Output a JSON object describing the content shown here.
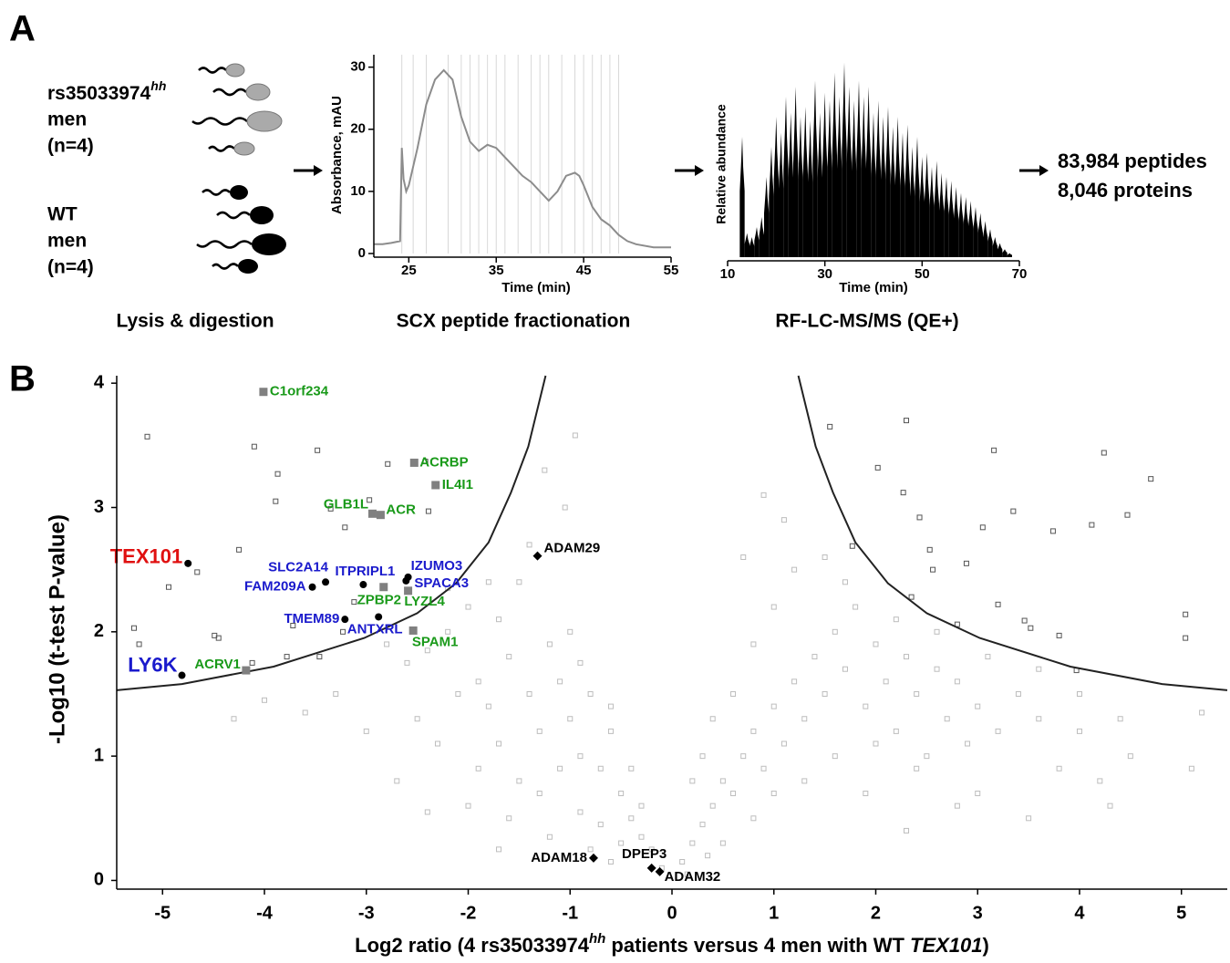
{
  "panel_labels": [
    "A",
    "B"
  ],
  "groups": [
    {
      "name": "rs35033974",
      "superscript": "hh",
      "lines": [
        "men",
        "(n=4)"
      ]
    },
    {
      "name": "WT",
      "lines": [
        "men",
        "(n=4)"
      ]
    }
  ],
  "steps": [
    "Lysis & digestion",
    "SCX peptide fractionation",
    "RF-LC-MS/MS (QE+)"
  ],
  "results": [
    "83,984 peptides",
    "8,046 proteins"
  ],
  "chart_data": [
    {
      "type": "line",
      "x_label": "Time (min)",
      "y_label": "Absorbance, mAU",
      "xlim": [
        21,
        55
      ],
      "ylim": [
        0,
        32
      ],
      "xticks": [
        25,
        35,
        45,
        55
      ],
      "yticks": [
        0,
        10,
        20,
        30
      ],
      "color": "#8c8c8c",
      "x": [
        21,
        22,
        23,
        24,
        24.2,
        24.4,
        24.7,
        25,
        26,
        27,
        28,
        29,
        30,
        31,
        32,
        33,
        34,
        35,
        36,
        37,
        38,
        39,
        40,
        41,
        42,
        43,
        44,
        44.5,
        45,
        46,
        47,
        48,
        49,
        50,
        51,
        53,
        55
      ],
      "values": [
        1.5,
        1.5,
        1.7,
        2,
        17,
        12,
        10,
        11,
        17,
        24,
        28,
        29.5,
        28,
        22,
        18,
        16.5,
        17.5,
        17,
        15.5,
        14,
        12.5,
        11.5,
        10,
        8.5,
        10,
        12.5,
        13,
        12.5,
        11,
        7.5,
        5.5,
        4.5,
        3,
        2,
        1.5,
        1,
        1
      ],
      "fractions": [
        24.2,
        25.5,
        27,
        29.5,
        31,
        32,
        33,
        34,
        35,
        36,
        37.5,
        39,
        40,
        41,
        42.5,
        44,
        45,
        46,
        47,
        48,
        49
      ]
    },
    {
      "type": "bar",
      "x_label": "Time (min)",
      "y_label": "Relative abundance",
      "xlim": [
        10,
        70
      ],
      "ylim": [
        0,
        100
      ],
      "xticks": [
        10,
        30,
        50,
        70
      ],
      "color": "#000000",
      "x": [
        13,
        14,
        15,
        16,
        17,
        18,
        19,
        20,
        21,
        22,
        23,
        24,
        25,
        26,
        27,
        28,
        29,
        30,
        31,
        32,
        33,
        34,
        35,
        36,
        37,
        38,
        39,
        40,
        41,
        42,
        43,
        44,
        45,
        46,
        47,
        48,
        49,
        50,
        51,
        52,
        53,
        54,
        55,
        56,
        57,
        58,
        59,
        60,
        61,
        62,
        63,
        64,
        65,
        66,
        67,
        68
      ],
      "values": [
        60,
        12,
        10,
        15,
        20,
        40,
        55,
        70,
        62,
        80,
        72,
        85,
        70,
        75,
        68,
        88,
        72,
        82,
        78,
        92,
        80,
        97,
        85,
        78,
        88,
        80,
        85,
        72,
        78,
        70,
        75,
        65,
        70,
        62,
        66,
        55,
        60,
        50,
        52,
        45,
        48,
        42,
        40,
        38,
        35,
        32,
        30,
        28,
        25,
        22,
        18,
        14,
        10,
        7,
        4,
        2
      ]
    },
    {
      "type": "scatter",
      "x_label": [
        "Log2 ratio (4 rs35033974",
        "hh",
        " patients versus 4 men with WT ",
        "TEX101",
        ")"
      ],
      "y_label": "-Log10 (t-test P-value)",
      "xlim": [
        -5.45,
        5.45
      ],
      "ylim": [
        -0.07,
        4.06
      ],
      "xticks": [
        -5,
        -4,
        -3,
        -2,
        -1,
        0,
        1,
        2,
        3,
        4,
        5
      ],
      "yticks": [
        0,
        1,
        2,
        3,
        4
      ],
      "background": {
        "color": "#bdbdbd",
        "x": [
          -2.8,
          -2.6,
          -2.4,
          -2.2,
          -2.0,
          -1.9,
          -1.8,
          -1.7,
          -1.6,
          -1.5,
          -1.4,
          -1.3,
          -1.2,
          -1.1,
          -1.0,
          -0.9,
          -0.8,
          -0.7,
          -0.6,
          -0.5,
          -0.4,
          -0.3,
          -0.2,
          -0.1,
          -2.5,
          -2.3,
          -2.1,
          -1.9,
          -1.7,
          -1.5,
          -1.3,
          -1.1,
          -0.9,
          -0.7,
          -0.5,
          -3.0,
          -3.3,
          -3.6,
          -4.0,
          -4.3,
          -2.7,
          -2.0,
          -1.6,
          -1.2,
          -0.8,
          -0.6,
          -1.4,
          -1.8,
          -2.2,
          -1.0,
          -0.9,
          -0.6,
          -0.4,
          -0.3,
          -1.7,
          -2.4,
          -1.05,
          -0.95,
          -1.25,
          0.1,
          0.2,
          0.3,
          0.4,
          0.5,
          0.6,
          0.7,
          0.8,
          0.9,
          1.0,
          1.1,
          1.2,
          1.3,
          1.4,
          1.5,
          1.6,
          1.7,
          1.8,
          1.9,
          2.0,
          2.1,
          2.2,
          2.3,
          2.4,
          2.5,
          2.6,
          2.7,
          2.8,
          2.9,
          3.0,
          3.2,
          3.4,
          3.6,
          3.8,
          4.0,
          4.2,
          4.5,
          0.5,
          0.8,
          1.0,
          1.3,
          1.6,
          2.0,
          2.4,
          3.0,
          0.6,
          0.8,
          1.0,
          1.2,
          0.7,
          1.1,
          0.9,
          1.5,
          1.7,
          2.2,
          2.6,
          3.1,
          3.6,
          4.0,
          4.4,
          5.1,
          5.2,
          4.3,
          3.5,
          2.8,
          0.3,
          0.4,
          0.2,
          1.9,
          2.3,
          0.15,
          0.35
        ],
        "values": [
          1.9,
          1.75,
          1.85,
          2.0,
          2.2,
          1.6,
          1.4,
          2.1,
          1.8,
          2.4,
          1.5,
          1.2,
          1.9,
          1.6,
          1.3,
          1.0,
          1.5,
          0.9,
          1.2,
          0.7,
          0.5,
          0.35,
          0.25,
          0.1,
          1.3,
          1.1,
          1.5,
          0.9,
          1.1,
          0.8,
          0.7,
          0.9,
          0.55,
          0.45,
          0.3,
          1.2,
          1.5,
          1.35,
          1.45,
          1.3,
          0.8,
          0.6,
          0.5,
          0.35,
          0.25,
          0.15,
          2.7,
          2.4,
          2.35,
          2.0,
          1.75,
          1.4,
          0.9,
          0.6,
          0.25,
          0.55,
          3.0,
          3.58,
          3.3,
          0.15,
          0.3,
          0.45,
          0.6,
          0.8,
          0.7,
          1.0,
          1.2,
          0.9,
          1.4,
          1.1,
          1.6,
          1.3,
          1.8,
          1.5,
          2.0,
          1.7,
          2.2,
          1.4,
          1.9,
          1.6,
          1.2,
          1.8,
          1.5,
          1.0,
          1.7,
          1.3,
          1.6,
          1.1,
          1.4,
          1.2,
          1.5,
          1.3,
          0.9,
          1.2,
          0.8,
          1.0,
          0.3,
          0.5,
          0.7,
          0.8,
          1.0,
          1.1,
          0.9,
          0.7,
          1.5,
          1.9,
          2.2,
          2.5,
          2.6,
          2.9,
          3.1,
          2.6,
          2.4,
          2.1,
          2.0,
          1.8,
          1.7,
          1.5,
          1.3,
          0.9,
          1.35,
          0.6,
          0.5,
          0.6,
          1.0,
          1.3,
          0.8,
          0.7,
          0.4,
          0.05,
          0.2
        ]
      },
      "significant": {
        "color": "#555555",
        "x": [
          -5.15,
          -3.87,
          -3.48,
          -4.1,
          -3.89,
          -4.25,
          -4.66,
          -5.28,
          -4.94,
          -4.49,
          -4.45,
          -3.78,
          -3.46,
          -3.72,
          -5.23,
          -4.12,
          -3.35,
          -3.21,
          -2.79,
          -2.42,
          -2.97,
          -3.12,
          -3.23,
          -2.39,
          1.55,
          2.3,
          2.02,
          3.16,
          4.24,
          4.7,
          4.12,
          4.47,
          3.74,
          3.35,
          3.05,
          2.43,
          2.27,
          2.53,
          2.89,
          2.56,
          3.2,
          3.46,
          3.52,
          3.8,
          3.97,
          5.04,
          5.04,
          2.35,
          2.8,
          1.77
        ],
        "values": [
          3.57,
          3.27,
          3.46,
          3.49,
          3.05,
          2.66,
          2.48,
          2.03,
          2.36,
          1.97,
          1.95,
          1.8,
          1.8,
          2.05,
          1.9,
          1.75,
          2.99,
          2.84,
          3.35,
          3.37,
          3.06,
          2.24,
          2.0,
          2.97,
          3.65,
          3.7,
          3.32,
          3.46,
          3.44,
          3.23,
          2.86,
          2.94,
          2.81,
          2.97,
          2.84,
          2.92,
          3.12,
          2.66,
          2.55,
          2.5,
          2.22,
          2.09,
          2.03,
          1.97,
          1.69,
          2.14,
          1.95,
          2.28,
          2.06,
          2.69
        ]
      },
      "threshold_curves": [
        {
          "color": "#222222",
          "x": [
            -5.45,
            -4.81,
            -3.91,
            -3.02,
            -2.5,
            -2.12,
            -1.8,
            -1.58,
            -1.41,
            -1.24
          ],
          "values": [
            1.53,
            1.58,
            1.72,
            1.95,
            2.15,
            2.39,
            2.72,
            3.12,
            3.49,
            4.06
          ]
        },
        {
          "color": "#222222",
          "x": [
            1.24,
            1.41,
            1.58,
            1.8,
            2.12,
            2.5,
            3.02,
            3.91,
            4.81,
            5.45
          ],
          "values": [
            4.06,
            3.49,
            3.12,
            2.72,
            2.39,
            2.15,
            1.95,
            1.72,
            1.58,
            1.53
          ]
        }
      ],
      "labeled_points": [
        {
          "label": "TEX101",
          "x": -4.75,
          "y": 2.55,
          "marker": "circle",
          "marker_color": "#000000",
          "label_color": "#e01010",
          "emphasis": true
        },
        {
          "label": "LY6K",
          "x": -4.81,
          "y": 1.65,
          "marker": "circle",
          "marker_color": "#000000",
          "label_color": "#1a1acc",
          "emphasis": true
        },
        {
          "label": "SLC2A14",
          "x": -3.4,
          "y": 2.4,
          "marker": "circle",
          "marker_color": "#000000",
          "label_color": "#1a1acc"
        },
        {
          "label": "FAM209A",
          "x": -3.53,
          "y": 2.36,
          "marker": "circle",
          "marker_color": "#000000",
          "label_color": "#1a1acc"
        },
        {
          "label": "ITPRIPL1",
          "x": -3.03,
          "y": 2.38,
          "marker": "circle",
          "marker_color": "#000000",
          "label_color": "#1a1acc"
        },
        {
          "label": "IZUMO3",
          "x": -2.59,
          "y": 2.44,
          "marker": "circle",
          "marker_color": "#000000",
          "label_color": "#1a1acc"
        },
        {
          "label": "SPACA3",
          "x": -2.61,
          "y": 2.41,
          "marker": "circle",
          "marker_color": "#000000",
          "label_color": "#1a1acc"
        },
        {
          "label": "TMEM89",
          "x": -3.21,
          "y": 2.1,
          "marker": "circle",
          "marker_color": "#000000",
          "label_color": "#1a1acc"
        },
        {
          "label": "ANTXRL",
          "x": -2.88,
          "y": 2.12,
          "marker": "circle",
          "marker_color": "#000000",
          "label_color": "#1a1acc"
        },
        {
          "label": "C1orf234",
          "x": -4.01,
          "y": 3.93,
          "marker": "square",
          "marker_color": "#808080",
          "label_color": "#1a9a1a"
        },
        {
          "label": "ACRBP",
          "x": -2.53,
          "y": 3.36,
          "marker": "square",
          "marker_color": "#808080",
          "label_color": "#1a9a1a"
        },
        {
          "label": "IL4I1",
          "x": -2.32,
          "y": 3.18,
          "marker": "square",
          "marker_color": "#808080",
          "label_color": "#1a9a1a"
        },
        {
          "label": "GLB1L",
          "x": -2.94,
          "y": 2.95,
          "marker": "square",
          "marker_color": "#808080",
          "label_color": "#1a9a1a"
        },
        {
          "label": "ACR",
          "x": -2.86,
          "y": 2.94,
          "marker": "square",
          "marker_color": "#808080",
          "label_color": "#1a9a1a"
        },
        {
          "label": "ZPBP2",
          "x": -2.83,
          "y": 2.36,
          "marker": "square",
          "marker_color": "#808080",
          "label_color": "#1a9a1a"
        },
        {
          "label": "LYZL4",
          "x": -2.59,
          "y": 2.33,
          "marker": "square",
          "marker_color": "#808080",
          "label_color": "#1a9a1a"
        },
        {
          "label": "SPAM1",
          "x": -2.54,
          "y": 2.01,
          "marker": "square",
          "marker_color": "#808080",
          "label_color": "#1a9a1a"
        },
        {
          "label": "ACRV1",
          "x": -4.18,
          "y": 1.69,
          "marker": "square",
          "marker_color": "#808080",
          "label_color": "#1a9a1a"
        },
        {
          "label": "ADAM29",
          "x": -1.32,
          "y": 2.61,
          "marker": "diamond",
          "marker_color": "#000000",
          "label_color": "#000000"
        },
        {
          "label": "ADAM18",
          "x": -0.77,
          "y": 0.18,
          "marker": "diamond",
          "marker_color": "#000000",
          "label_color": "#000000"
        },
        {
          "label": "DPEP3",
          "x": -0.2,
          "y": 0.1,
          "marker": "diamond",
          "marker_color": "#000000",
          "label_color": "#000000"
        },
        {
          "label": "ADAM32",
          "x": -0.12,
          "y": 0.07,
          "marker": "diamond",
          "marker_color": "#000000",
          "label_color": "#000000"
        }
      ]
    }
  ]
}
